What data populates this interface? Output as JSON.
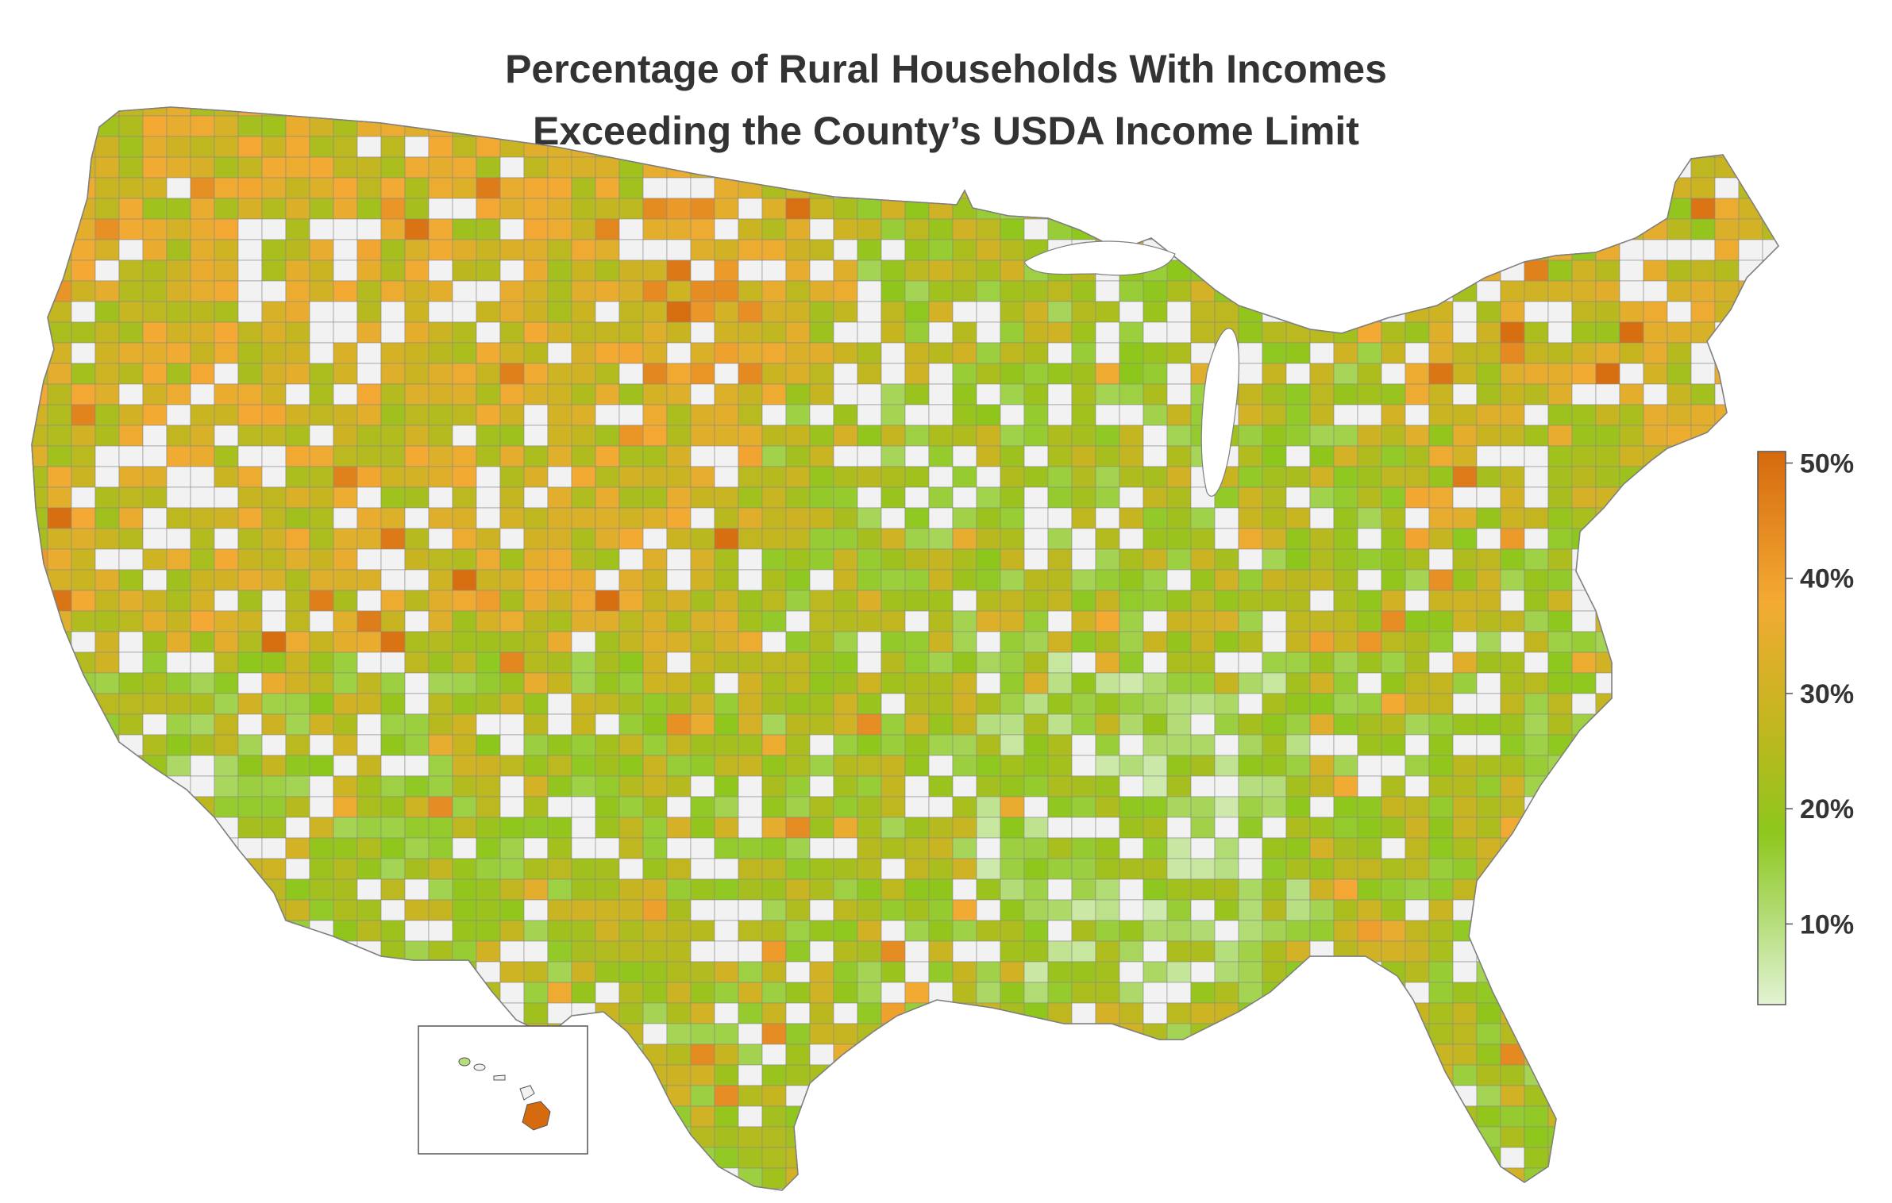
{
  "title": {
    "line1": "Percentage of Rural Households With Incomes",
    "line2": "Exceeding the County’s USDA Income Limit"
  },
  "legend": {
    "position": "right",
    "orientation": "vertical",
    "min": 3,
    "max": 51,
    "ticks": [
      {
        "value": 10,
        "label": "10%"
      },
      {
        "value": 20,
        "label": "20%"
      },
      {
        "value": 30,
        "label": "30%"
      },
      {
        "value": 40,
        "label": "40%"
      },
      {
        "value": 50,
        "label": "50%"
      }
    ],
    "gradient": [
      {
        "value": 3,
        "color": "#e3f3d3"
      },
      {
        "value": 10,
        "color": "#b6de7e"
      },
      {
        "value": 18,
        "color": "#8ec71c"
      },
      {
        "value": 28,
        "color": "#c6b520"
      },
      {
        "value": 38,
        "color": "#f3aa33"
      },
      {
        "value": 51,
        "color": "#d56a0e"
      }
    ]
  },
  "colors": {
    "no_data": "#f2f2f2",
    "county_border": "#7f7f7f",
    "title_text": "#333333"
  },
  "inset": "Hawaii"
}
